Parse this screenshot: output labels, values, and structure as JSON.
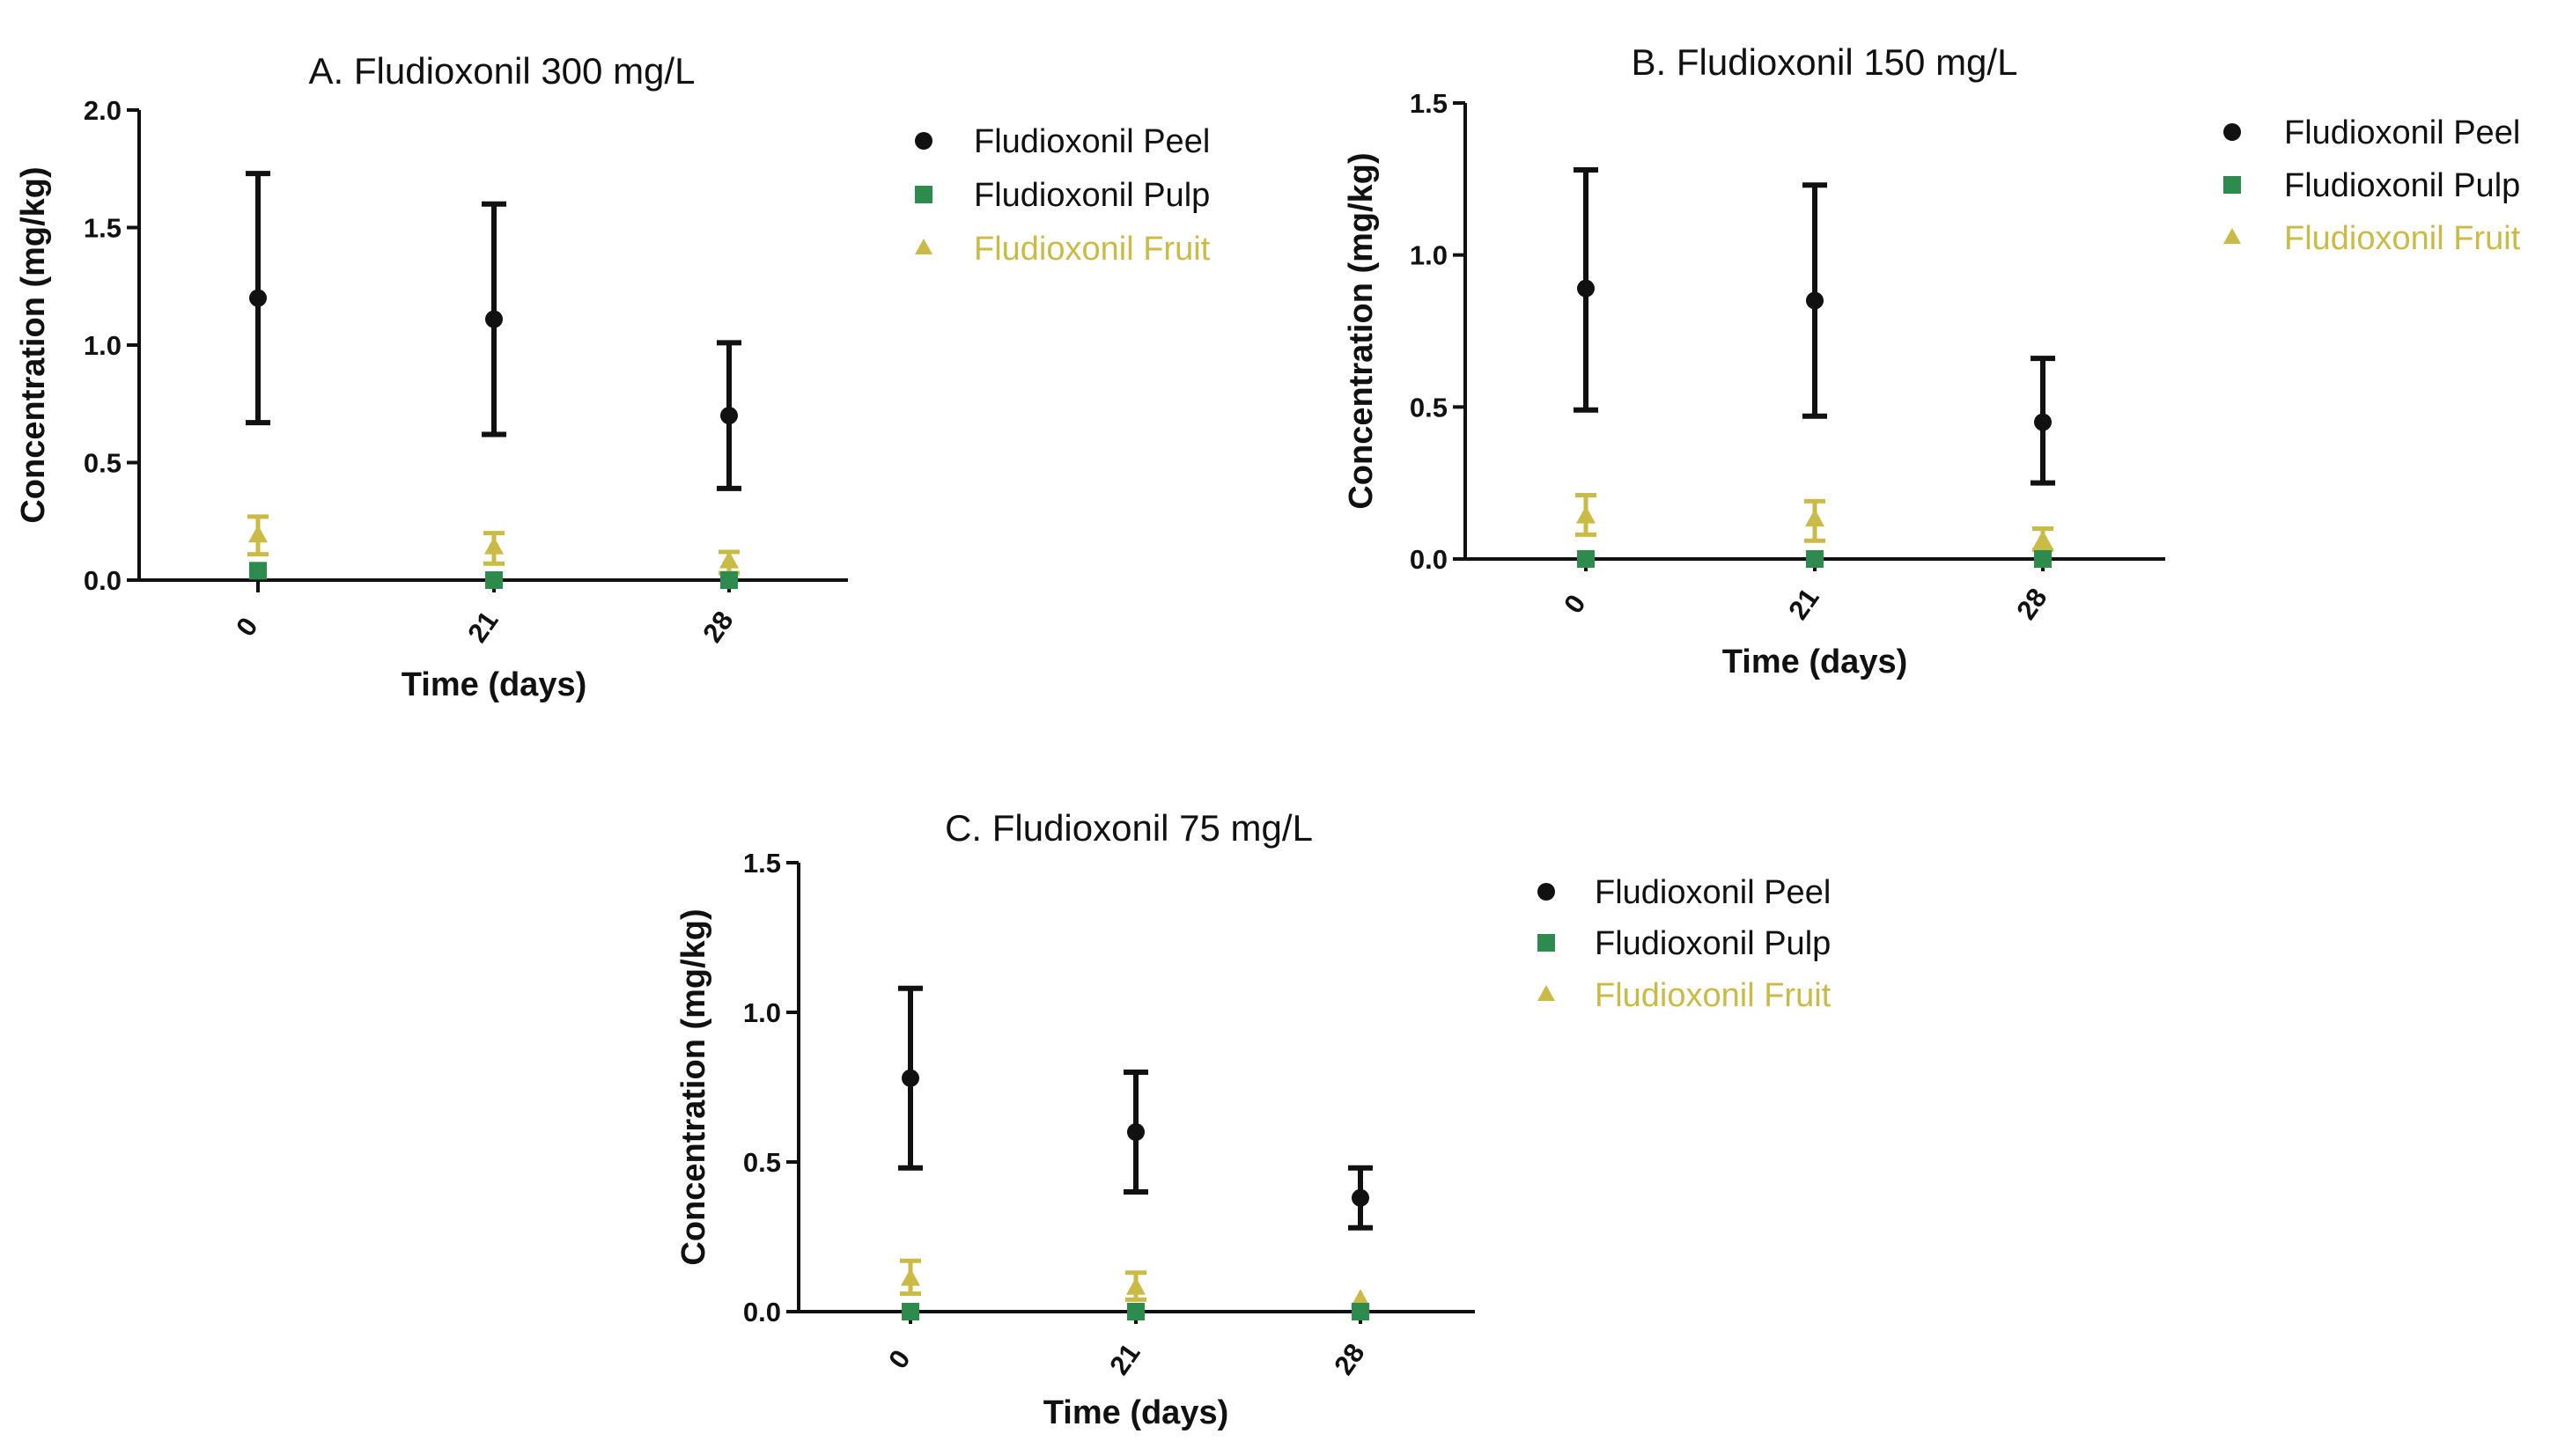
{
  "colors": {
    "peel": "#111111",
    "pulp": "#2e8b4e",
    "fruit": "#c9bb45",
    "axis": "#111111"
  },
  "chart_data": [
    {
      "type": "scatter",
      "title": "A. Fludioxonil 300 mg/L",
      "xlabel": "Time (days)",
      "ylabel": "Concentration (mg/kg)",
      "categories": [
        "0",
        "21",
        "28"
      ],
      "ylim": [
        0,
        2.0
      ],
      "yticks": [
        "0.0",
        "0.5",
        "1.0",
        "1.5",
        "2.0"
      ],
      "grid": false,
      "legend": "right",
      "series": [
        {
          "name": "Fludioxonil Peel",
          "marker": "circle",
          "color": "#111111",
          "values": [
            1.2,
            1.11,
            0.7
          ],
          "err_low": [
            0.67,
            0.62,
            0.39
          ],
          "err_high": [
            1.73,
            1.6,
            1.01
          ]
        },
        {
          "name": "Fludioxonil Pulp",
          "marker": "square",
          "color": "#2e8b4e",
          "values": [
            0.04,
            0.0,
            0.0
          ],
          "err_low": [
            0.04,
            0.0,
            0.0
          ],
          "err_high": [
            0.04,
            0.0,
            0.0
          ]
        },
        {
          "name": "Fludioxonil Fruit",
          "marker": "triangle",
          "color": "#c9bb45",
          "values": [
            0.19,
            0.14,
            0.08
          ],
          "err_low": [
            0.11,
            0.07,
            0.03
          ],
          "err_high": [
            0.27,
            0.2,
            0.12
          ]
        }
      ]
    },
    {
      "type": "scatter",
      "title": "B. Fludioxonil 150 mg/L",
      "xlabel": "Time (days)",
      "ylabel": "Concentration (mg/kg)",
      "categories": [
        "0",
        "21",
        "28"
      ],
      "ylim": [
        0,
        1.5
      ],
      "yticks": [
        "0.0",
        "0.5",
        "1.0",
        "1.5"
      ],
      "grid": false,
      "legend": "right",
      "series": [
        {
          "name": "Fludioxonil Peel",
          "marker": "circle",
          "color": "#111111",
          "values": [
            0.89,
            0.85,
            0.45
          ],
          "err_low": [
            0.49,
            0.47,
            0.25
          ],
          "err_high": [
            1.28,
            1.23,
            0.66
          ]
        },
        {
          "name": "Fludioxonil Pulp",
          "marker": "square",
          "color": "#2e8b4e",
          "values": [
            0.0,
            0.0,
            0.0
          ],
          "err_low": [
            0.0,
            0.0,
            0.0
          ],
          "err_high": [
            0.0,
            0.0,
            0.0
          ]
        },
        {
          "name": "Fludioxonil Fruit",
          "marker": "triangle",
          "color": "#c9bb45",
          "values": [
            0.14,
            0.13,
            0.06
          ],
          "err_low": [
            0.08,
            0.06,
            0.03
          ],
          "err_high": [
            0.21,
            0.19,
            0.1
          ]
        }
      ]
    },
    {
      "type": "scatter",
      "title": "C. Fludioxonil 75 mg/L",
      "xlabel": "Time (days)",
      "ylabel": "Concentration (mg/kg)",
      "categories": [
        "0",
        "21",
        "28"
      ],
      "ylim": [
        0,
        1.5
      ],
      "yticks": [
        "0.0",
        "0.5",
        "1.0",
        "1.5"
      ],
      "grid": false,
      "legend": "right",
      "series": [
        {
          "name": "Fludioxonil Peel",
          "marker": "circle",
          "color": "#111111",
          "values": [
            0.78,
            0.6,
            0.38
          ],
          "err_low": [
            0.48,
            0.4,
            0.28
          ],
          "err_high": [
            1.08,
            0.8,
            0.48
          ]
        },
        {
          "name": "Fludioxonil Pulp",
          "marker": "square",
          "color": "#2e8b4e",
          "values": [
            0.0,
            0.0,
            0.0
          ],
          "err_low": [
            0.0,
            0.0,
            0.0
          ],
          "err_high": [
            0.0,
            0.0,
            0.0
          ]
        },
        {
          "name": "Fludioxonil Fruit",
          "marker": "triangle",
          "color": "#c9bb45",
          "values": [
            0.11,
            0.08,
            0.04
          ],
          "err_low": [
            0.06,
            0.04,
            0.04
          ],
          "err_high": [
            0.17,
            0.13,
            0.04
          ]
        }
      ]
    }
  ]
}
